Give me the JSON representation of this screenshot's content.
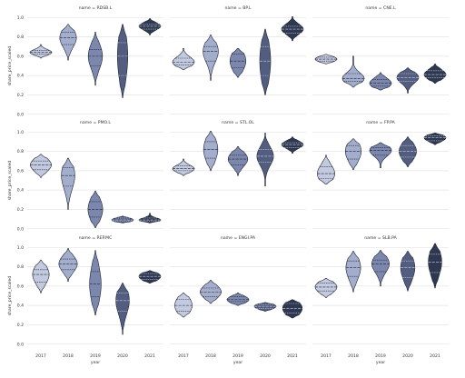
{
  "chart_data": {
    "type": "violin",
    "title": "",
    "xlabel": "year",
    "ylabel": "share_price_scaled",
    "ylim": [
      0,
      1
    ],
    "yticks": [
      "0.0",
      "0.2",
      "0.4",
      "0.6",
      "0.8",
      "1.0"
    ],
    "categories": [
      "2017",
      "2018",
      "2019",
      "2020",
      "2021"
    ],
    "year_colors": [
      "#c3cadf",
      "#a3adcc",
      "#7b87ac",
      "#525d80",
      "#2e3850"
    ],
    "grid": true,
    "panels": [
      {
        "title": "name = RDSB.L",
        "violins": [
          {
            "year": "2017",
            "min": 0.58,
            "q1": 0.62,
            "median": 0.64,
            "q3": 0.66,
            "max": 0.72
          },
          {
            "year": "2018",
            "min": 0.56,
            "q1": 0.72,
            "median": 0.79,
            "q3": 0.85,
            "max": 0.93
          },
          {
            "year": "2019",
            "min": 0.3,
            "q1": 0.5,
            "median": 0.6,
            "q3": 0.67,
            "max": 0.85
          },
          {
            "year": "2020",
            "min": 0.17,
            "q1": 0.4,
            "median": 0.6,
            "q3": 0.74,
            "max": 0.93
          },
          {
            "year": "2021",
            "min": 0.82,
            "q1": 0.88,
            "median": 0.91,
            "q3": 0.93,
            "max": 0.99
          }
        ]
      },
      {
        "title": "name = BP.L",
        "violins": [
          {
            "year": "2017",
            "min": 0.46,
            "q1": 0.51,
            "median": 0.54,
            "q3": 0.58,
            "max": 0.68
          },
          {
            "year": "2018",
            "min": 0.35,
            "q1": 0.55,
            "median": 0.65,
            "q3": 0.7,
            "max": 0.82
          },
          {
            "year": "2019",
            "min": 0.38,
            "q1": 0.48,
            "median": 0.55,
            "q3": 0.62,
            "max": 0.68
          },
          {
            "year": "2020",
            "min": 0.2,
            "q1": 0.4,
            "median": 0.55,
            "q3": 0.7,
            "max": 0.88
          },
          {
            "year": "2021",
            "min": 0.76,
            "q1": 0.84,
            "median": 0.88,
            "q3": 0.91,
            "max": 1.01
          }
        ]
      },
      {
        "title": "name = CNE.L",
        "violins": [
          {
            "year": "2017",
            "min": 0.52,
            "q1": 0.55,
            "median": 0.57,
            "q3": 0.59,
            "max": 0.62
          },
          {
            "year": "2018",
            "min": 0.28,
            "q1": 0.34,
            "median": 0.37,
            "q3": 0.42,
            "max": 0.6
          },
          {
            "year": "2019",
            "min": 0.25,
            "q1": 0.29,
            "median": 0.32,
            "q3": 0.36,
            "max": 0.43
          },
          {
            "year": "2020",
            "min": 0.22,
            "q1": 0.34,
            "median": 0.38,
            "q3": 0.42,
            "max": 0.48
          },
          {
            "year": "2021",
            "min": 0.32,
            "q1": 0.38,
            "median": 0.41,
            "q3": 0.45,
            "max": 0.52
          }
        ]
      },
      {
        "title": "name = PMO.L",
        "violins": [
          {
            "year": "2017",
            "min": 0.53,
            "q1": 0.61,
            "median": 0.66,
            "q3": 0.7,
            "max": 0.77
          },
          {
            "year": "2018",
            "min": 0.2,
            "q1": 0.44,
            "median": 0.55,
            "q3": 0.63,
            "max": 0.73
          },
          {
            "year": "2019",
            "min": 0.01,
            "q1": 0.12,
            "median": 0.2,
            "q3": 0.28,
            "max": 0.39
          },
          {
            "year": "2020",
            "min": 0.06,
            "q1": 0.08,
            "median": 0.09,
            "q3": 0.11,
            "max": 0.13
          },
          {
            "year": "2021",
            "min": 0.06,
            "q1": 0.08,
            "median": 0.09,
            "q3": 0.11,
            "max": 0.16
          }
        ]
      },
      {
        "title": "name = STL.OL",
        "violins": [
          {
            "year": "2017",
            "min": 0.55,
            "q1": 0.6,
            "median": 0.62,
            "q3": 0.65,
            "max": 0.72
          },
          {
            "year": "2018",
            "min": 0.6,
            "q1": 0.73,
            "median": 0.82,
            "q3": 0.9,
            "max": 1.01
          },
          {
            "year": "2019",
            "min": 0.55,
            "q1": 0.66,
            "median": 0.72,
            "q3": 0.76,
            "max": 0.85
          },
          {
            "year": "2020",
            "min": 0.44,
            "q1": 0.69,
            "median": 0.75,
            "q3": 0.82,
            "max": 0.99
          },
          {
            "year": "2021",
            "min": 0.78,
            "q1": 0.84,
            "median": 0.87,
            "q3": 0.89,
            "max": 0.95
          }
        ]
      },
      {
        "title": "name = FP.PA",
        "violins": [
          {
            "year": "2017",
            "min": 0.46,
            "q1": 0.52,
            "median": 0.57,
            "q3": 0.64,
            "max": 0.76
          },
          {
            "year": "2018",
            "min": 0.61,
            "q1": 0.72,
            "median": 0.8,
            "q3": 0.86,
            "max": 0.93
          },
          {
            "year": "2019",
            "min": 0.63,
            "q1": 0.76,
            "median": 0.81,
            "q3": 0.84,
            "max": 0.89
          },
          {
            "year": "2020",
            "min": 0.64,
            "q1": 0.74,
            "median": 0.8,
            "q3": 0.86,
            "max": 0.95
          },
          {
            "year": "2021",
            "min": 0.87,
            "q1": 0.91,
            "median": 0.94,
            "q3": 0.96,
            "max": 0.99
          }
        ]
      },
      {
        "title": "name = REP.MC",
        "violins": [
          {
            "year": "2017",
            "min": 0.53,
            "q1": 0.64,
            "median": 0.72,
            "q3": 0.77,
            "max": 0.87
          },
          {
            "year": "2018",
            "min": 0.65,
            "q1": 0.77,
            "median": 0.83,
            "q3": 0.88,
            "max": 0.99
          },
          {
            "year": "2019",
            "min": 0.3,
            "q1": 0.49,
            "median": 0.62,
            "q3": 0.75,
            "max": 0.97
          },
          {
            "year": "2020",
            "min": 0.1,
            "q1": 0.34,
            "median": 0.45,
            "q3": 0.53,
            "max": 0.63
          },
          {
            "year": "2021",
            "min": 0.63,
            "q1": 0.67,
            "median": 0.7,
            "q3": 0.73,
            "max": 0.76
          }
        ]
      },
      {
        "title": "name = ENGI.PA",
        "violins": [
          {
            "year": "2017",
            "min": 0.28,
            "q1": 0.34,
            "median": 0.4,
            "q3": 0.46,
            "max": 0.53
          },
          {
            "year": "2018",
            "min": 0.42,
            "q1": 0.49,
            "median": 0.54,
            "q3": 0.58,
            "max": 0.66
          },
          {
            "year": "2019",
            "min": 0.4,
            "q1": 0.44,
            "median": 0.46,
            "q3": 0.49,
            "max": 0.53
          },
          {
            "year": "2020",
            "min": 0.34,
            "q1": 0.37,
            "median": 0.39,
            "q3": 0.41,
            "max": 0.43
          },
          {
            "year": "2021",
            "min": 0.27,
            "q1": 0.32,
            "median": 0.37,
            "q3": 0.42,
            "max": 0.46
          }
        ]
      },
      {
        "title": "name = SLB.PA",
        "violins": [
          {
            "year": "2017",
            "min": 0.48,
            "q1": 0.55,
            "median": 0.59,
            "q3": 0.63,
            "max": 0.68
          },
          {
            "year": "2018",
            "min": 0.54,
            "q1": 0.7,
            "median": 0.79,
            "q3": 0.86,
            "max": 0.96
          },
          {
            "year": "2019",
            "min": 0.6,
            "q1": 0.75,
            "median": 0.83,
            "q3": 0.87,
            "max": 0.97
          },
          {
            "year": "2020",
            "min": 0.55,
            "q1": 0.69,
            "median": 0.79,
            "q3": 0.86,
            "max": 0.96
          },
          {
            "year": "2021",
            "min": 0.58,
            "q1": 0.74,
            "median": 0.85,
            "q3": 0.93,
            "max": 1.04
          }
        ]
      }
    ]
  }
}
